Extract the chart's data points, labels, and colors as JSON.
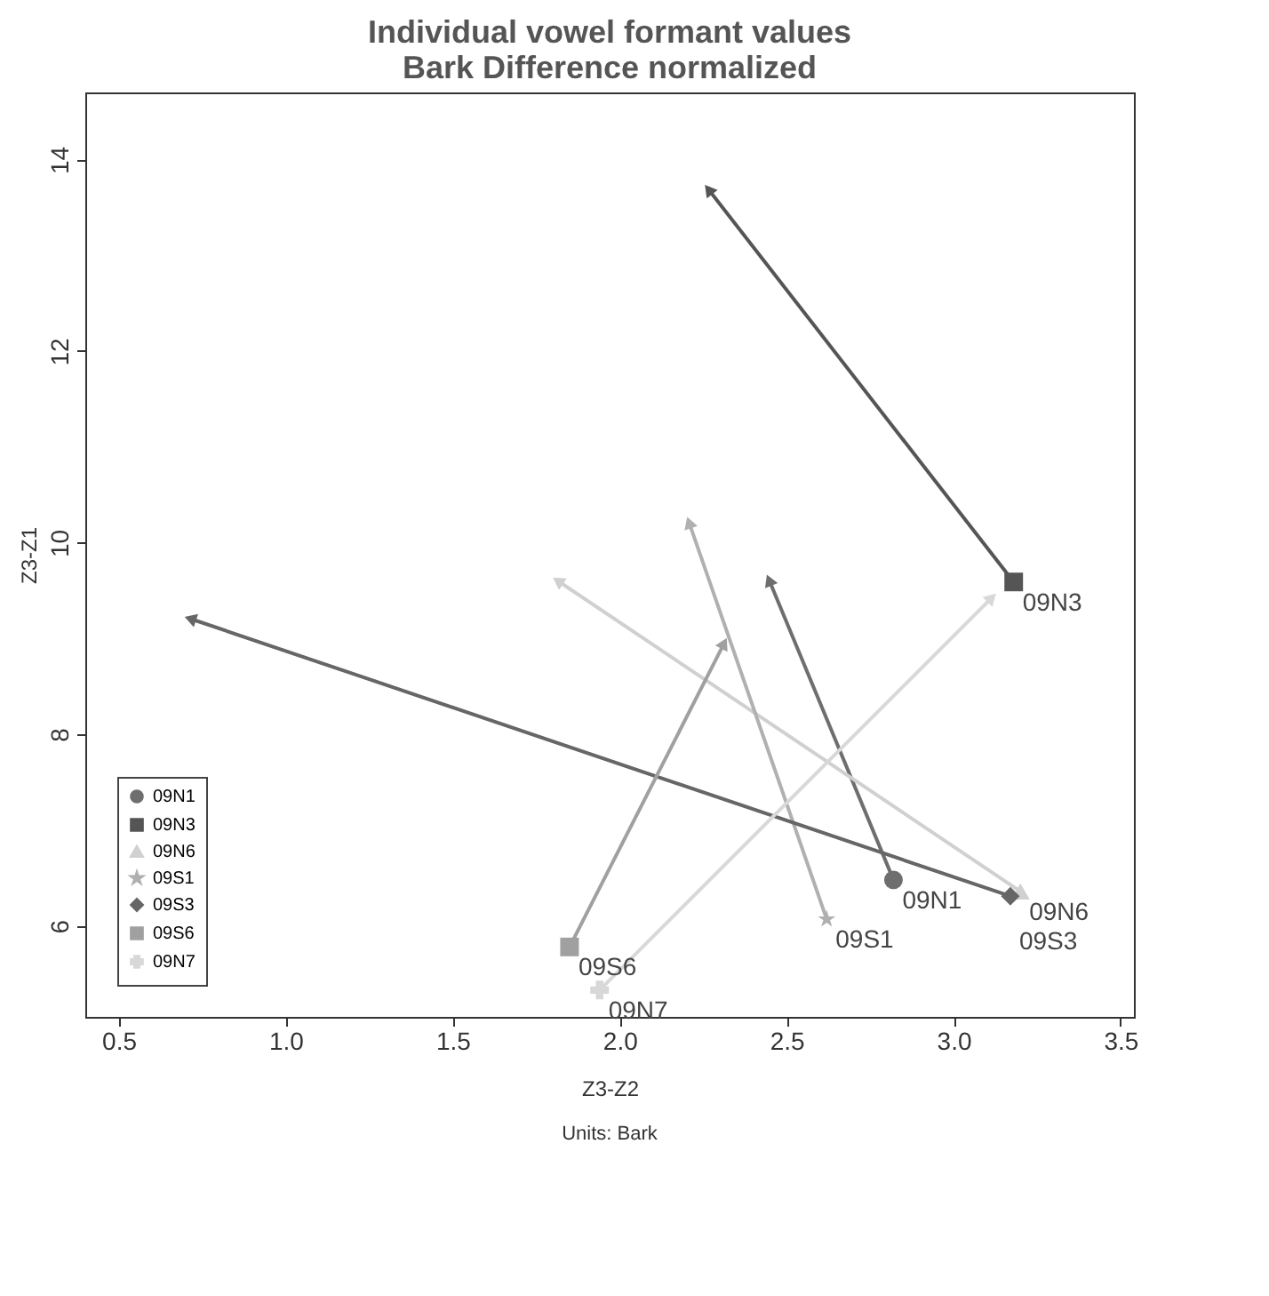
{
  "chart_data": {
    "type": "line",
    "title": [
      "Individual vowel formant values",
      "Bark Difference normalized"
    ],
    "xlabel": "Z3-Z2",
    "ylabel": "Z3-Z1",
    "annotations": [
      "Units: Bark"
    ],
    "xlim": [
      0.4,
      3.54
    ],
    "ylim": [
      5.05,
      14.7
    ],
    "xticks": [
      0.5,
      {
        "value": 1,
        "label": "1.0"
      },
      1.5,
      {
        "value": 2,
        "label": "2.0"
      },
      2.5,
      {
        "value": 3,
        "label": "3.0"
      },
      3.5
    ],
    "yticks": [
      6,
      8,
      10,
      12,
      14
    ],
    "grid": false,
    "legend": "bottom left",
    "series": [
      {
        "name": "09N1",
        "color": "#6e6e6e",
        "marker": "circle",
        "x": [
          2.82,
          2.45
        ],
        "values": [
          6.48,
          9.59
        ]
      },
      {
        "name": "09N3",
        "color": "#555555",
        "marker": "square",
        "x": [
          3.18,
          2.27
        ],
        "values": [
          9.59,
          13.67
        ]
      },
      {
        "name": "09N6",
        "color": "#d0d0d0",
        "marker": "triangle",
        "x": [
          3.2,
          1.82
        ],
        "values": [
          6.36,
          9.59
        ]
      },
      {
        "name": "09S1",
        "color": "#b0b0b0",
        "marker": "star",
        "x": [
          2.62,
          2.21
        ],
        "values": [
          6.07,
          10.19
        ]
      },
      {
        "name": "09S3",
        "color": "#666666",
        "marker": "diamond",
        "x": [
          3.17,
          0.72
        ],
        "values": [
          6.31,
          9.2
        ]
      },
      {
        "name": "09S6",
        "color": "#a0a0a0",
        "marker": "square",
        "x": [
          1.85,
          2.31
        ],
        "values": [
          5.78,
          8.93
        ]
      },
      {
        "name": "09N7",
        "color": "#d8d8d8",
        "marker": "cross",
        "x": [
          1.94,
          3.11
        ],
        "values": [
          5.33,
          9.41
        ]
      }
    ]
  }
}
